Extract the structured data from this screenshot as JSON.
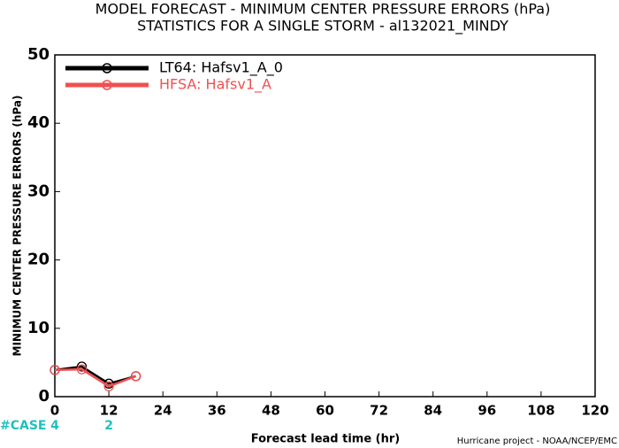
{
  "chart_data": {
    "type": "line",
    "title": "MODEL FORECAST - MINIMUM CENTER PRESSURE ERRORS (hPa)",
    "subtitle": "STATISTICS FOR A SINGLE STORM - al132021_MINDY",
    "x_label": "Forecast lead time (hr)",
    "y_label": "MINIMUM CENTER PRESSURE ERRORS (hPa)",
    "credit": "Hurricane project - NOAA/NCEP/EMC",
    "x": [
      0,
      6,
      12,
      18
    ],
    "series": [
      {
        "name": "LT64: Hafsv1_A_0",
        "color": "#000000",
        "values": [
          3.9,
          4.4,
          1.9,
          3.0
        ]
      },
      {
        "name": "HFSA: Hafsv1_A",
        "color": "#f05050",
        "values": [
          3.9,
          4.0,
          1.5,
          3.0
        ]
      }
    ],
    "xlim": [
      0,
      120
    ],
    "xticks": [
      0,
      12,
      24,
      36,
      48,
      60,
      72,
      84,
      96,
      108,
      120
    ],
    "ylim": [
      0,
      50
    ],
    "yticks": [
      0,
      10,
      20,
      30,
      40,
      50
    ],
    "case_label": "#CASE",
    "case_counts": {
      "x": [
        0,
        12
      ],
      "values": [
        4,
        2
      ],
      "color": "#20c0c0"
    },
    "legend": "upper left",
    "grid": false
  }
}
